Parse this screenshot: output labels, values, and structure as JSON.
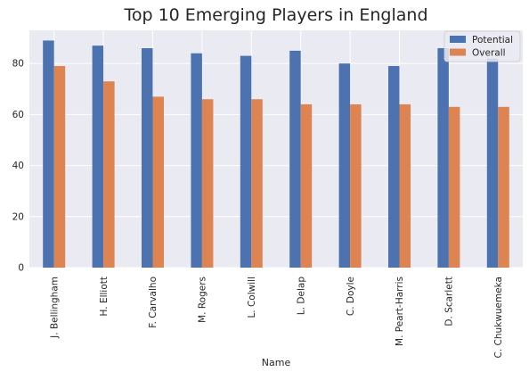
{
  "chart_data": {
    "type": "bar",
    "title": "Top 10 Emerging Players in England",
    "xlabel": "Name",
    "ylabel": "",
    "categories": [
      "J. Bellingham",
      "H. Elliott",
      "F. Carvalho",
      "M. Rogers",
      "L. Colwill",
      "L. Delap",
      "C. Doyle",
      "M. Peart-Harris",
      "D. Scarlett",
      "C. Chukwuemeka"
    ],
    "series": [
      {
        "name": "Potential",
        "color": "#4c72b0",
        "values": [
          89,
          87,
          86,
          84,
          83,
          85,
          80,
          79,
          86,
          82
        ]
      },
      {
        "name": "Overall",
        "color": "#dd8452",
        "values": [
          79,
          73,
          67,
          66,
          66,
          64,
          64,
          64,
          63,
          63
        ]
      }
    ],
    "ylim": [
      0,
      93
    ],
    "yticks": [
      0,
      20,
      40,
      60,
      80
    ],
    "grid": true,
    "legend_position": "top-right",
    "background": "#eaeaf2"
  }
}
